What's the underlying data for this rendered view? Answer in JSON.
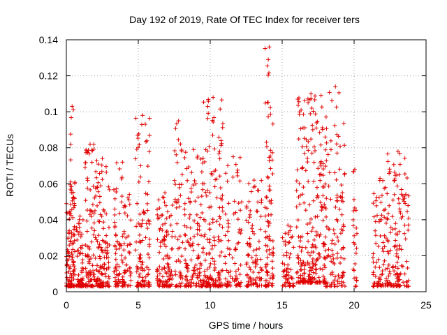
{
  "chart_data": {
    "type": "scatter",
    "title": "Day 192 of 2019, Rate Of TEC Index for receiver ters",
    "xlabel": "GPS time / hours",
    "ylabel": "ROTI / TECUs",
    "xlim": [
      0,
      25
    ],
    "ylim": [
      0,
      0.14
    ],
    "x_ticks": [
      "0",
      "5",
      "10",
      "15",
      "20",
      "25"
    ],
    "y_ticks": [
      "0",
      "0.02",
      "0.04",
      "0.06",
      "0.08",
      "0.1",
      "0.12",
      "0.14"
    ],
    "grid": true,
    "marker": "plus",
    "color": "#e00000",
    "clusters": [
      {
        "x": [
          0.0,
          0.6
        ],
        "ylow": 0.003,
        "yhigh": 0.061,
        "n": 120
      },
      {
        "x": [
          0.3,
          0.5
        ],
        "ylow": 0.055,
        "yhigh": 0.103,
        "n": 10
      },
      {
        "x": [
          0.7,
          1.2
        ],
        "ylow": 0.003,
        "yhigh": 0.042,
        "n": 60
      },
      {
        "x": [
          1.3,
          2.0
        ],
        "ylow": 0.003,
        "yhigh": 0.082,
        "n": 90
      },
      {
        "x": [
          2.0,
          3.0
        ],
        "ylow": 0.003,
        "yhigh": 0.074,
        "n": 130
      },
      {
        "x": [
          3.3,
          4.5
        ],
        "ylow": 0.003,
        "yhigh": 0.072,
        "n": 110
      },
      {
        "x": [
          4.8,
          5.8
        ],
        "ylow": 0.003,
        "yhigh": 0.098,
        "n": 110
      },
      {
        "x": [
          6.3,
          7.4
        ],
        "ylow": 0.003,
        "yhigh": 0.055,
        "n": 110
      },
      {
        "x": [
          7.5,
          8.1
        ],
        "ylow": 0.003,
        "yhigh": 0.095,
        "n": 50
      },
      {
        "x": [
          8.2,
          9.5
        ],
        "ylow": 0.003,
        "yhigh": 0.079,
        "n": 120
      },
      {
        "x": [
          9.5,
          10.9
        ],
        "ylow": 0.003,
        "yhigh": 0.108,
        "n": 160
      },
      {
        "x": [
          11.0,
          12.2
        ],
        "ylow": 0.003,
        "yhigh": 0.075,
        "n": 80
      },
      {
        "x": [
          12.5,
          13.6
        ],
        "ylow": 0.003,
        "yhigh": 0.062,
        "n": 90
      },
      {
        "x": [
          13.8,
          14.4
        ],
        "ylow": 0.003,
        "yhigh": 0.136,
        "n": 90
      },
      {
        "x": [
          15.0,
          15.8
        ],
        "ylow": 0.003,
        "yhigh": 0.037,
        "n": 60
      },
      {
        "x": [
          16.0,
          18.0
        ],
        "ylow": 0.005,
        "yhigh": 0.11,
        "n": 260
      },
      {
        "x": [
          18.0,
          19.4
        ],
        "ylow": 0.003,
        "yhigh": 0.114,
        "n": 120
      },
      {
        "x": [
          19.9,
          20.2
        ],
        "ylow": 0.003,
        "yhigh": 0.068,
        "n": 25
      },
      {
        "x": [
          21.3,
          22.3
        ],
        "ylow": 0.003,
        "yhigh": 0.063,
        "n": 80
      },
      {
        "x": [
          22.3,
          23.8
        ],
        "ylow": 0.003,
        "yhigh": 0.078,
        "n": 140
      }
    ]
  }
}
